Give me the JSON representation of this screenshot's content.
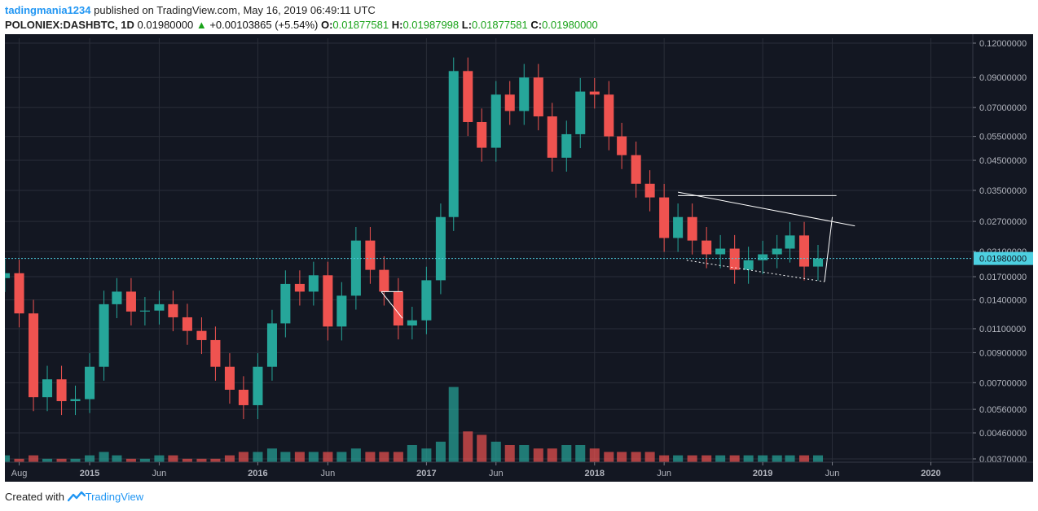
{
  "header": {
    "author": "tadingmania1234",
    "published_text": "published on TradingView.com, May 16, 2019 06:49:11 UTC",
    "symbol": "POLONIEX:DASHBTC, 1D",
    "last": "0.01980000",
    "change_arrow": "▲",
    "change": "+0.00103865 (+5.54%)",
    "o_label": "O:",
    "o": "0.01877581",
    "h_label": "H:",
    "h": "0.01987998",
    "l_label": "L:",
    "l": "0.01877581",
    "c_label": "C:",
    "c": "0.01980000"
  },
  "footer": {
    "created_with": "Created with",
    "brand": "TradingView",
    "logo_icon": "tradingview-logo-icon"
  },
  "colors": {
    "background": "#131722",
    "up": "#26a69a",
    "down": "#ef5350",
    "price_line": "#4dd0e1",
    "price_tag": "#4dd0e1",
    "accent": "#2196f3"
  },
  "chart_data": {
    "type": "candlestick",
    "scale": "log",
    "price_ticks": [
      "0.12000000",
      "0.09000000",
      "0.07000000",
      "0.05500000",
      "0.04500000",
      "0.03500000",
      "0.02700000",
      "0.02100000",
      "0.01700000",
      "0.01400000",
      "0.01100000",
      "0.00900000",
      "0.00700000",
      "0.00560000",
      "0.00460000",
      "0.00370000"
    ],
    "x_ticks": [
      "Aug",
      "2015",
      "Jun",
      "2016",
      "Jun",
      "2017",
      "Jun",
      "2018",
      "Jun",
      "2019",
      "Jun",
      "2020"
    ],
    "current_price": "0.01980000",
    "x_range": [
      "2014-07",
      "2020-04"
    ],
    "ylim": [
      0.0036,
      0.125
    ],
    "series": {
      "dates": [
        "2014-07",
        "2014-08",
        "2014-09",
        "2014-10",
        "2014-11",
        "2014-12",
        "2015-01",
        "2015-02",
        "2015-03",
        "2015-04",
        "2015-05",
        "2015-06",
        "2015-07",
        "2015-08",
        "2015-09",
        "2015-10",
        "2015-11",
        "2015-12",
        "2016-01",
        "2016-02",
        "2016-03",
        "2016-04",
        "2016-05",
        "2016-06",
        "2016-07",
        "2016-08",
        "2016-09",
        "2016-10",
        "2016-11",
        "2016-12",
        "2017-01",
        "2017-02",
        "2017-03",
        "2017-04",
        "2017-05",
        "2017-06",
        "2017-07",
        "2017-08",
        "2017-09",
        "2017-10",
        "2017-11",
        "2017-12",
        "2018-01",
        "2018-02",
        "2018-03",
        "2018-04",
        "2018-05",
        "2018-06",
        "2018-07",
        "2018-08",
        "2018-09",
        "2018-10",
        "2018-11",
        "2018-12",
        "2019-01",
        "2019-02",
        "2019-03",
        "2019-04",
        "2019-05"
      ],
      "close": [
        0.0175,
        0.0125,
        0.0062,
        0.0072,
        0.006,
        0.0061,
        0.008,
        0.0135,
        0.015,
        0.0127,
        0.0128,
        0.0135,
        0.0121,
        0.0108,
        0.01,
        0.008,
        0.0066,
        0.0058,
        0.008,
        0.0115,
        0.016,
        0.015,
        0.0172,
        0.0112,
        0.0145,
        0.023,
        0.018,
        0.015,
        0.0113,
        0.0118,
        0.0165,
        0.028,
        0.095,
        0.062,
        0.05,
        0.078,
        0.068,
        0.09,
        0.065,
        0.046,
        0.056,
        0.08,
        0.078,
        0.055,
        0.047,
        0.037,
        0.033,
        0.0235,
        0.028,
        0.023,
        0.0205,
        0.0215,
        0.018,
        0.0195,
        0.0205,
        0.0215,
        0.024,
        0.0185,
        0.0198
      ],
      "volume": [
        2,
        1,
        2,
        1,
        1,
        1,
        2,
        3,
        2,
        1,
        1,
        2,
        2,
        1,
        1,
        1,
        2,
        3,
        3,
        4,
        3,
        3,
        3,
        3,
        3,
        4,
        3,
        3,
        3,
        5,
        4,
        6,
        22,
        9,
        8,
        6,
        5,
        5,
        4,
        4,
        5,
        5,
        4,
        3,
        3,
        3,
        3,
        2,
        2,
        2,
        2,
        2,
        2,
        2,
        2,
        2,
        2,
        2,
        2
      ]
    },
    "annotations": {
      "resistance_line": [
        [
          "2018-07-01",
          0.0345
        ],
        [
          "2019-07-20",
          0.026
        ]
      ],
      "support_line": [
        [
          "2018-07-20",
          0.0195
        ],
        [
          "2019-05-15",
          0.0163
        ]
      ],
      "horizontal_line": [
        [
          "2018-07-01",
          0.0335
        ],
        [
          "2019-06-10",
          0.0335
        ]
      ],
      "projection_arrow": [
        [
          "2019-05-15",
          0.0163
        ],
        [
          "2019-06-01",
          0.028
        ]
      ],
      "triangle_2016": [
        [
          "2016-09-25",
          0.015
        ],
        [
          "2016-11-10",
          0.012
        ]
      ]
    }
  }
}
